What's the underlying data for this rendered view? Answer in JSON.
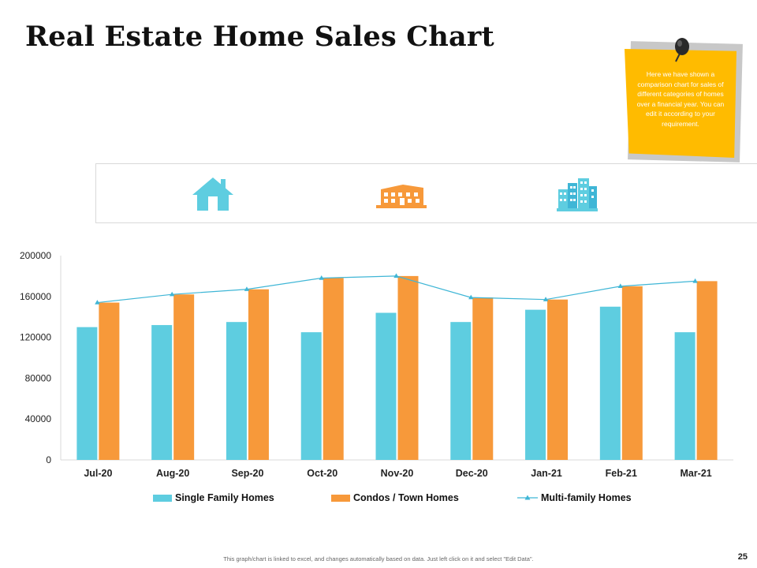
{
  "slide": {
    "title": "Real Estate Home Sales Chart",
    "note_text": "Here we have shown a comparison chart for sales of different categories of homes over a financial year. You can edit it according to your requirement.",
    "footer": "This graph/chart is linked to excel, and changes automatically based on data. Just left click on it and select \"Edit Data\".",
    "page_number": "25"
  },
  "icons": [
    "house-icon",
    "apartment-building-icon",
    "city-skyline-icon"
  ],
  "colors": {
    "single_family": "#5ecde0",
    "condos": "#f7993a",
    "multi_family": "#3fb6d6",
    "note": "#ffbb00"
  },
  "chart_data": {
    "type": "bar",
    "title": "",
    "xlabel": "",
    "ylabel": "",
    "categories": [
      "Jul-20",
      "Aug-20",
      "Sep-20",
      "Oct-20",
      "Nov-20",
      "Dec-20",
      "Jan-21",
      "Feb-21",
      "Mar-21"
    ],
    "series": [
      {
        "name": "Single Family Homes",
        "kind": "bar",
        "values": [
          130000,
          132000,
          135000,
          125000,
          144000,
          135000,
          147000,
          150000,
          125000
        ]
      },
      {
        "name": "Condos / Town Homes",
        "kind": "bar",
        "values": [
          154000,
          162000,
          167000,
          178000,
          180000,
          159000,
          157000,
          170000,
          175000
        ]
      },
      {
        "name": "Multi-family Homes",
        "kind": "line",
        "values": [
          154000,
          162000,
          167000,
          178000,
          180000,
          159000,
          157000,
          170000,
          175000
        ]
      }
    ],
    "ylim": [
      0,
      200000
    ],
    "yticks": [
      "0",
      "40000",
      "80000",
      "120000",
      "160000",
      "200000"
    ],
    "grid": false,
    "legend": "bottom"
  }
}
